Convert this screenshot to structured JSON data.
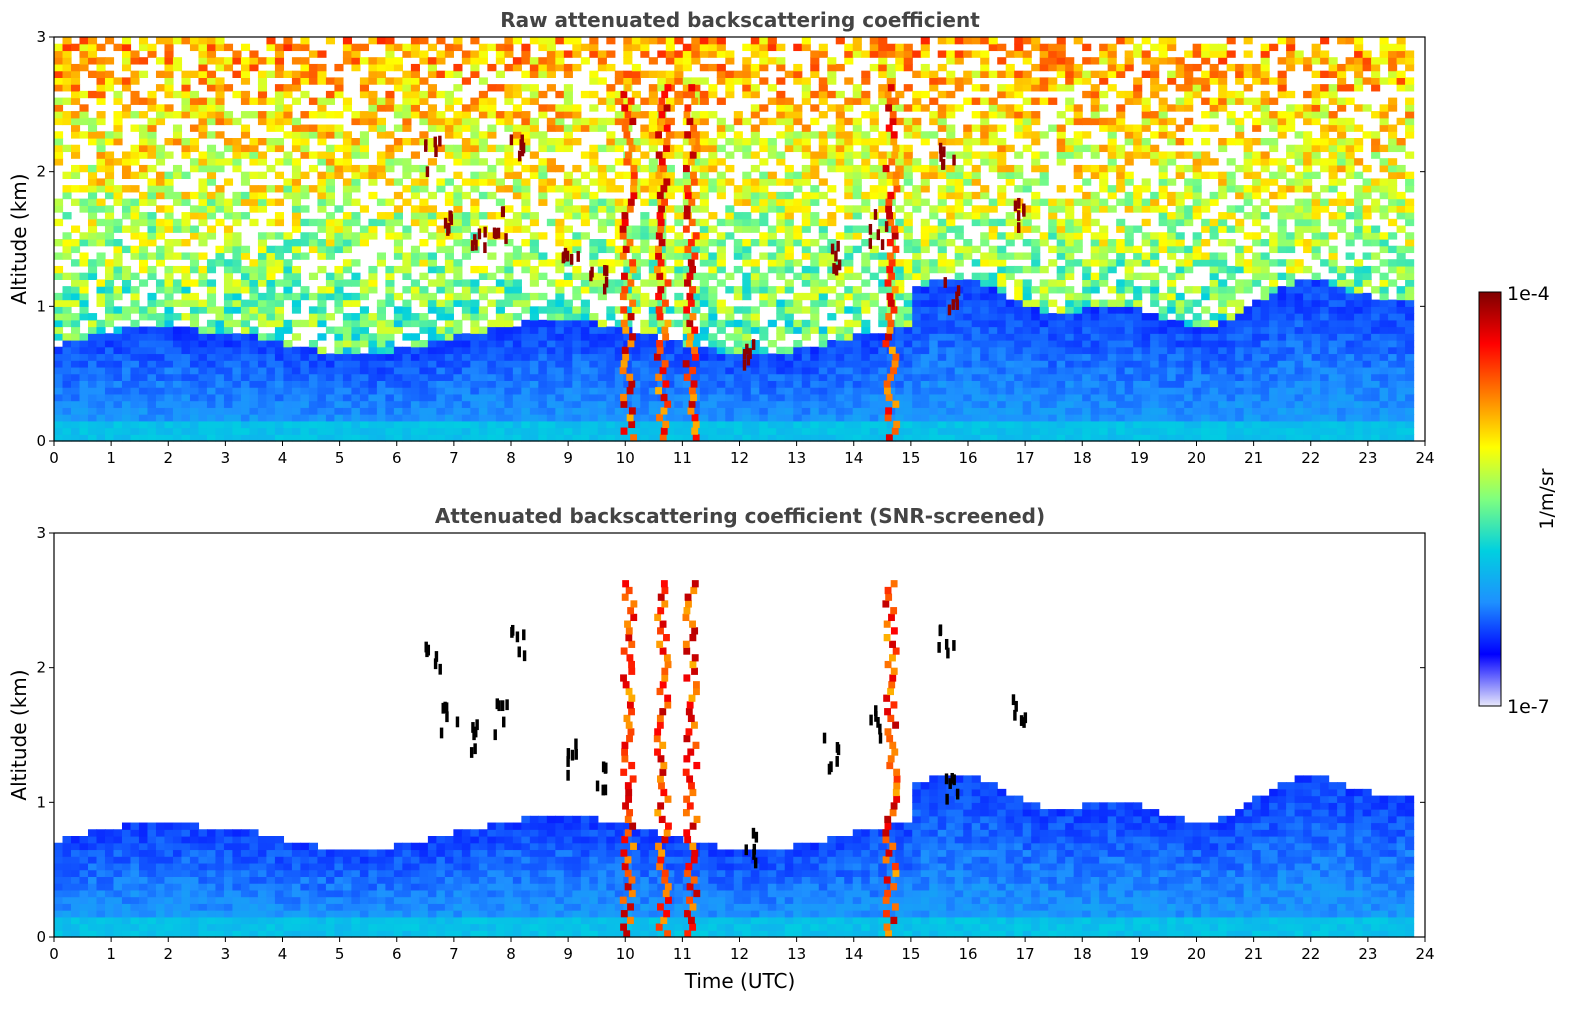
{
  "chart_data": [
    {
      "type": "heatmap",
      "title": "Raw attenuated backscattering coefficient",
      "xlabel": "",
      "ylabel": "Altitude (km)",
      "xlim": [
        0,
        24
      ],
      "ylim": [
        0,
        3
      ],
      "xticks": [
        "0",
        "1",
        "2",
        "3",
        "4",
        "5",
        "6",
        "7",
        "8",
        "9",
        "10",
        "11",
        "12",
        "13",
        "14",
        "15",
        "16",
        "17",
        "18",
        "19",
        "20",
        "21",
        "22",
        "23",
        "24"
      ],
      "yticks": [
        "0",
        "1",
        "2",
        "3"
      ],
      "screened": false
    },
    {
      "type": "heatmap",
      "title": "Attenuated backscattering coefficient (SNR-screened)",
      "xlabel": "Time (UTC)",
      "ylabel": "Altitude (km)",
      "xlim": [
        0,
        24
      ],
      "ylim": [
        0,
        3
      ],
      "xticks": [
        "0",
        "1",
        "2",
        "3",
        "4",
        "5",
        "6",
        "7",
        "8",
        "9",
        "10",
        "11",
        "12",
        "13",
        "14",
        "15",
        "16",
        "17",
        "18",
        "19",
        "20",
        "21",
        "22",
        "23",
        "24"
      ],
      "yticks": [
        "0",
        "1",
        "2",
        "3"
      ],
      "screened": true
    }
  ],
  "colorbar": {
    "label": "1/m/sr",
    "max_label": "1e-4",
    "min_label": "1e-7",
    "scale": "log",
    "colormap": "jet",
    "colors": [
      "#e8e8fb",
      "#0000ff",
      "#1e90ff",
      "#00d0e0",
      "#7fff7f",
      "#ffff00",
      "#ff8000",
      "#ff0000",
      "#7f0000"
    ]
  },
  "features": {
    "cloud_color": "#8b0000",
    "screened_cloud_color": "#000000",
    "boundary_layer_color": "#1565ff",
    "surface_color": "#00d0ff",
    "thick_cloud_bands_utc": [
      10.0,
      10.6,
      11.1,
      14.6
    ]
  }
}
